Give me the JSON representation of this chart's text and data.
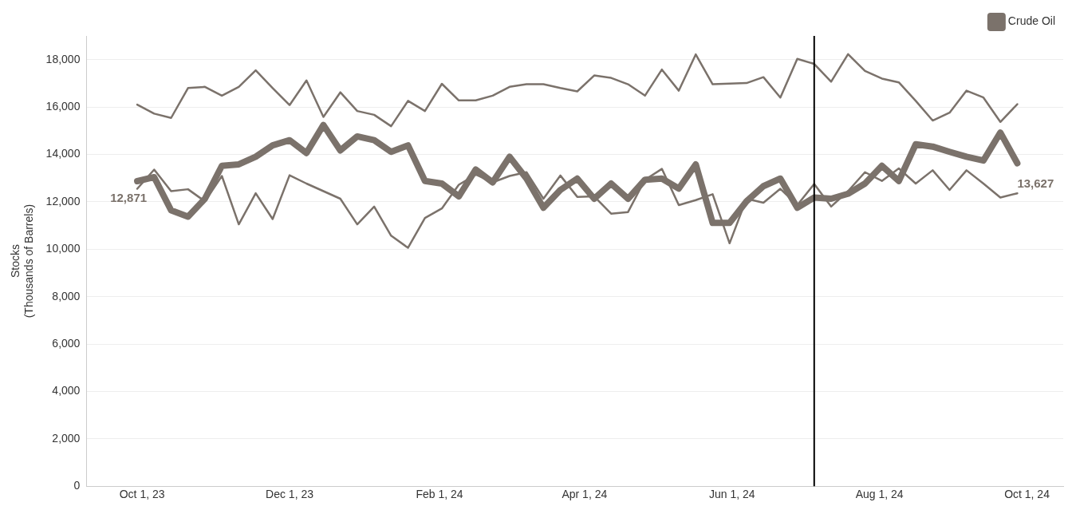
{
  "chart_data": {
    "type": "line",
    "ylabel": "Stocks\n(Thousands of Barrels)",
    "x": [
      "2023-09-29",
      "2023-10-06",
      "2023-10-13",
      "2023-10-20",
      "2023-10-27",
      "2023-11-03",
      "2023-11-10",
      "2023-11-17",
      "2023-11-24",
      "2023-12-01",
      "2023-12-08",
      "2023-12-15",
      "2023-12-22",
      "2023-12-29",
      "2024-01-05",
      "2024-01-12",
      "2024-01-19",
      "2024-01-26",
      "2024-02-02",
      "2024-02-09",
      "2024-02-16",
      "2024-02-23",
      "2024-03-01",
      "2024-03-08",
      "2024-03-15",
      "2024-03-22",
      "2024-03-29",
      "2024-04-05",
      "2024-04-12",
      "2024-04-19",
      "2024-04-26",
      "2024-05-03",
      "2024-05-10",
      "2024-05-17",
      "2024-05-24",
      "2024-05-31",
      "2024-06-07",
      "2024-06-14",
      "2024-06-21",
      "2024-06-28",
      "2024-07-05",
      "2024-07-12",
      "2024-07-19",
      "2024-07-26",
      "2024-08-02",
      "2024-08-09",
      "2024-08-16",
      "2024-08-23",
      "2024-08-30",
      "2024-09-06",
      "2024-09-13",
      "2024-09-20",
      "2024-09-27"
    ],
    "series": [
      {
        "color": "#7b726b",
        "values": [
          16100,
          15720,
          15540,
          16800,
          16850,
          16480,
          16850,
          17550,
          16800,
          16080,
          17120,
          15580,
          16620,
          15830,
          15670,
          15190,
          16260,
          15830,
          16980,
          16280,
          16280,
          16480,
          16850,
          16960,
          16960,
          16800,
          16660,
          17330,
          17230,
          16960,
          16480,
          17580,
          16690,
          18220,
          16960,
          16990,
          17010,
          17260,
          16400,
          18030,
          17820,
          17070,
          18230,
          17520,
          17200,
          17040,
          16260,
          15430,
          15760,
          16690,
          16400,
          15370,
          16120
        ]
      },
      {
        "color": "#7b726b",
        "values": [
          12550,
          13360,
          12450,
          12530,
          12020,
          13090,
          11050,
          12360,
          11270,
          13120,
          12770,
          12450,
          12130,
          11050,
          11800,
          10570,
          10060,
          11320,
          11720,
          12720,
          13150,
          12820,
          13090,
          13250,
          12130,
          13110,
          12210,
          12230,
          11500,
          11570,
          12930,
          13390,
          11860,
          12070,
          12320,
          10250,
          12130,
          11960,
          12550,
          11860,
          12750,
          11800,
          12450,
          13250,
          12880,
          13410,
          12770,
          13330,
          12500,
          13330,
          12770,
          12180,
          12360
        ]
      },
      {
        "name": "Crude Oil",
        "color": "#7b726b",
        "values": [
          12871,
          13040,
          11640,
          11370,
          12130,
          13520,
          13580,
          13900,
          14380,
          14600,
          14060,
          15240,
          14170,
          14760,
          14600,
          14110,
          14380,
          12880,
          12770,
          12230,
          13360,
          12820,
          13900,
          12980,
          11750,
          12500,
          12980,
          12130,
          12770,
          12130,
          12930,
          12980,
          12560,
          13580,
          11110,
          11110,
          12020,
          12660,
          12980,
          11750,
          12180,
          12130,
          12340,
          12770,
          13520,
          12880,
          14430,
          14330,
          14110,
          13900,
          13740,
          14920,
          13627
        ],
        "value_labels": [
          "12,871",
          null,
          null,
          null,
          null,
          null,
          null,
          null,
          null,
          null,
          null,
          null,
          null,
          null,
          null,
          null,
          null,
          null,
          null,
          null,
          null,
          null,
          null,
          null,
          null,
          null,
          null,
          null,
          null,
          null,
          null,
          null,
          null,
          null,
          null,
          null,
          null,
          null,
          null,
          null,
          null,
          null,
          null,
          null,
          null,
          null,
          null,
          null,
          null,
          null,
          null,
          null,
          "13,627"
        ]
      }
    ],
    "xlim": [
      "2023-09-08",
      "2024-10-16"
    ],
    "xticks": [
      {
        "value": "2023-10-01",
        "label": "Oct 1, 23"
      },
      {
        "value": "2023-12-01",
        "label": "Dec 1, 23"
      },
      {
        "value": "2024-02-01",
        "label": "Feb 1, 24"
      },
      {
        "value": "2024-04-01",
        "label": "Apr 1, 24"
      },
      {
        "value": "2024-06-01",
        "label": "Jun 1, 24"
      },
      {
        "value": "2024-08-01",
        "label": "Aug 1, 24"
      },
      {
        "value": "2024-10-01",
        "label": "Oct 1, 24"
      }
    ],
    "ylim": [
      0,
      19000
    ],
    "yticks": [
      {
        "value": 0,
        "label": "0"
      },
      {
        "value": 2000,
        "label": "2,000"
      },
      {
        "value": 4000,
        "label": "4,000"
      },
      {
        "value": 6000,
        "label": "6,000"
      },
      {
        "value": 8000,
        "label": "8,000"
      },
      {
        "value": 10000,
        "label": "10,000"
      },
      {
        "value": 12000,
        "label": "12,000"
      },
      {
        "value": 14000,
        "label": "14,000"
      },
      {
        "value": 16000,
        "label": "16,000"
      },
      {
        "value": 18000,
        "label": "18,000"
      }
    ],
    "ref_lines": [
      {
        "axis": "x",
        "value": "2024-07-05",
        "color": "#000000"
      }
    ],
    "grid": "y",
    "legend": "top right",
    "marker": "none",
    "line_style": "solid"
  }
}
